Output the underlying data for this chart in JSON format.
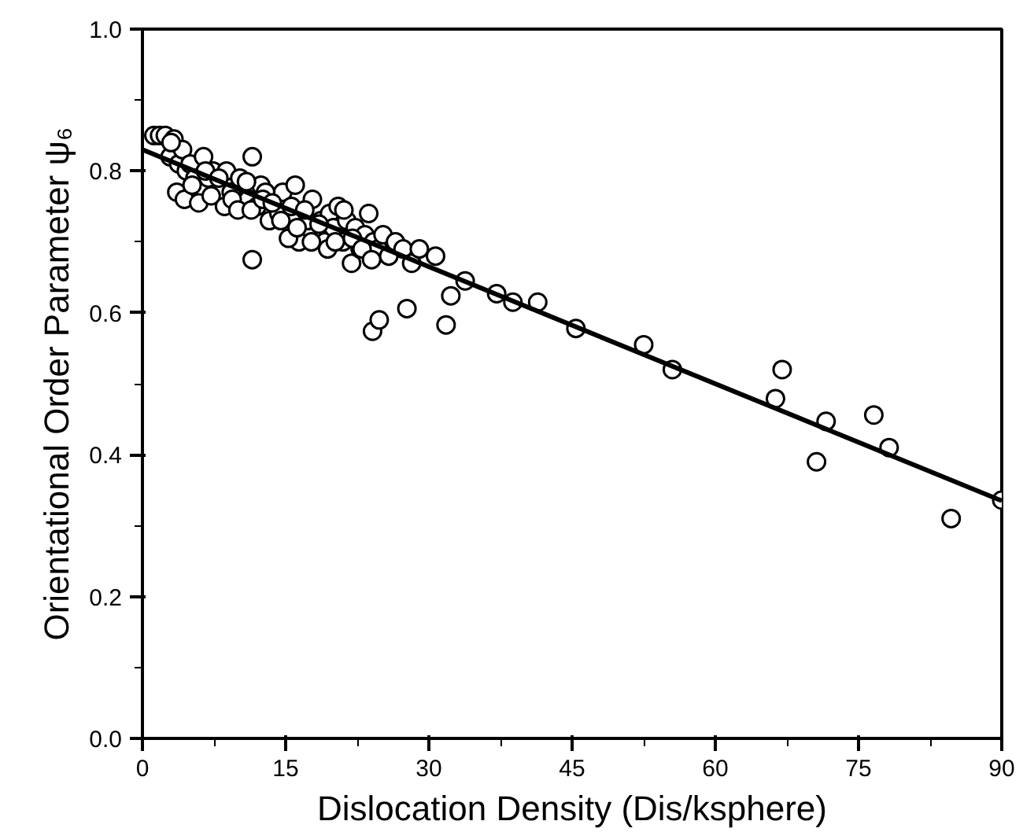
{
  "chart_data": {
    "type": "scatter",
    "xlabel": "Dislocation Density (Dis/ksphere)",
    "ylabel": "Orientational Order Parameter ψ₆",
    "xlim": [
      0,
      90
    ],
    "ylim": [
      0,
      1.0
    ],
    "xticks": [
      0,
      15,
      30,
      45,
      60,
      75,
      90
    ],
    "yticks": [
      {
        "value": 0,
        "label": "0.0"
      },
      0.2,
      0.4,
      0.6,
      0.8,
      {
        "value": 1.0,
        "label": "1.0"
      }
    ],
    "grid": false,
    "series": [
      {
        "marker": "circle",
        "color": "#000000",
        "x": [
          1.2,
          1.8,
          2.4,
          2.9,
          3.3,
          3.8,
          4.2,
          4.6,
          5.0,
          5.5,
          6.4,
          6.9,
          7.4,
          8.8,
          9.3,
          10.2,
          11.1,
          11.5,
          12.0,
          12.4,
          12.9,
          13.3,
          14.3,
          14.7,
          15.6,
          16.0,
          16.4,
          17.3,
          17.8,
          18.7,
          19.1,
          19.6,
          20.0,
          20.5,
          21.0,
          21.4,
          21.9,
          22.3,
          22.8,
          23.3,
          23.7,
          24.2,
          24.7,
          25.2,
          25.8,
          26.5,
          27.3,
          28.2,
          29.0,
          30.7,
          33.8,
          3.0,
          3.6,
          4.4,
          5.2,
          5.9,
          6.6,
          7.2,
          8.0,
          8.6,
          9.4,
          10.0,
          10.9,
          11.4,
          12.6,
          13.6,
          14.5,
          15.3,
          16.2,
          17.0,
          17.7,
          18.5,
          19.4,
          20.2,
          21.1,
          22.0,
          23.0,
          24.0,
          11.5,
          24.1,
          24.8,
          27.7,
          31.8,
          32.3,
          37.1,
          38.8,
          41.4,
          45.4,
          52.5,
          55.5,
          66.3,
          67.0,
          70.6,
          71.6,
          76.6,
          78.2,
          84.7,
          90.0
        ],
        "values": [
          0.85,
          0.85,
          0.85,
          0.82,
          0.845,
          0.81,
          0.83,
          0.8,
          0.81,
          0.79,
          0.82,
          0.79,
          0.8,
          0.8,
          0.77,
          0.79,
          0.76,
          0.82,
          0.75,
          0.78,
          0.77,
          0.73,
          0.74,
          0.77,
          0.75,
          0.78,
          0.7,
          0.73,
          0.76,
          0.73,
          0.7,
          0.74,
          0.72,
          0.75,
          0.7,
          0.73,
          0.67,
          0.72,
          0.69,
          0.71,
          0.74,
          0.7,
          0.69,
          0.71,
          0.68,
          0.7,
          0.69,
          0.67,
          0.69,
          0.68,
          0.645,
          0.84,
          0.77,
          0.76,
          0.78,
          0.755,
          0.8,
          0.765,
          0.79,
          0.75,
          0.76,
          0.745,
          0.785,
          0.745,
          0.76,
          0.755,
          0.73,
          0.705,
          0.72,
          0.745,
          0.7,
          0.725,
          0.69,
          0.7,
          0.745,
          0.705,
          0.69,
          0.675,
          0.675,
          0.574,
          0.59,
          0.606,
          0.583,
          0.624,
          0.627,
          0.615,
          0.615,
          0.578,
          0.555,
          0.52,
          0.479,
          0.52,
          0.39,
          0.447,
          0.456,
          0.41,
          0.31,
          0.336
        ]
      },
      {
        "type": "line",
        "color": "#000000",
        "x": [
          0,
          90
        ],
        "values": [
          0.83,
          0.335
        ]
      }
    ]
  }
}
